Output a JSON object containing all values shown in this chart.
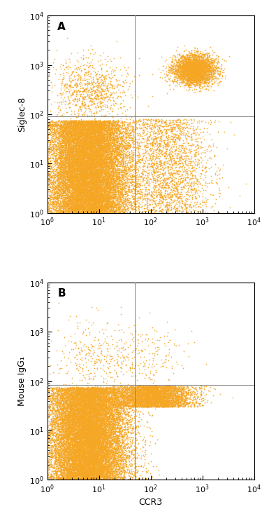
{
  "dot_color": "#F5A623",
  "background_color": "#FFFFFF",
  "border_color": "#000000",
  "gate_line_color": "#808080",
  "xlim": [
    1,
    10000
  ],
  "ylim": [
    1,
    10000
  ],
  "xlabel": "CCR3",
  "ylabel_A": "Siglec-8",
  "ylabel_B": "Mouse IgG₁",
  "label_A": "A",
  "label_B": "B",
  "gate_x": 50,
  "gate_y_A": 90,
  "gate_y_B": 85,
  "dot_size": 1.5,
  "dot_alpha": 0.9
}
